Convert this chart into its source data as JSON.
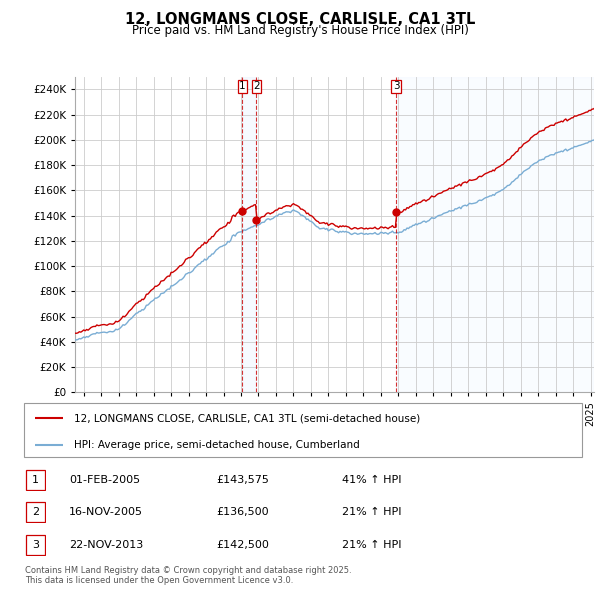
{
  "title": "12, LONGMANS CLOSE, CARLISLE, CA1 3TL",
  "subtitle": "Price paid vs. HM Land Registry's House Price Index (HPI)",
  "ylim": [
    0,
    250000
  ],
  "yticks": [
    0,
    20000,
    40000,
    60000,
    80000,
    100000,
    120000,
    140000,
    160000,
    180000,
    200000,
    220000,
    240000
  ],
  "hpi_color": "#7aadd4",
  "price_color": "#cc0000",
  "vline_color": "#cc0000",
  "shade_color": "#ddeeff",
  "background_color": "#ffffff",
  "grid_color": "#cccccc",
  "legend_labels": [
    "12, LONGMANS CLOSE, CARLISLE, CA1 3TL (semi-detached house)",
    "HPI: Average price, semi-detached house, Cumberland"
  ],
  "table_rows": [
    [
      "1",
      "01-FEB-2005",
      "£143,575",
      "41% ↑ HPI"
    ],
    [
      "2",
      "16-NOV-2005",
      "£136,500",
      "21% ↑ HPI"
    ],
    [
      "3",
      "22-NOV-2013",
      "£142,500",
      "21% ↑ HPI"
    ]
  ],
  "footnote": "Contains HM Land Registry data © Crown copyright and database right 2025.\nThis data is licensed under the Open Government Licence v3.0.",
  "s1_t": 2005.08,
  "s1_p": 143575,
  "s2_t": 2005.88,
  "s2_p": 136500,
  "s3_t": 2013.89,
  "s3_p": 142500,
  "xstart": 1995.5,
  "xend": 2025.2
}
